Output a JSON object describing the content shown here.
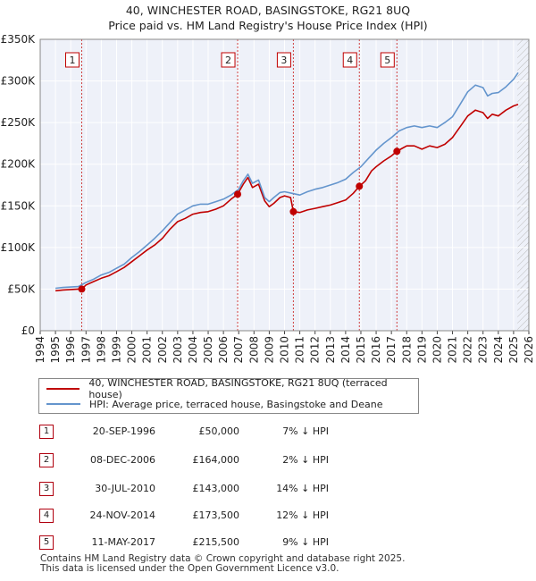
{
  "chart_data": {
    "type": "line",
    "title_line1": "40, WINCHESTER ROAD, BASINGSTOKE, RG21 8UQ",
    "title_line2": "Price paid vs. HM Land Registry's House Price Index (HPI)",
    "xlim": [
      1994,
      2026
    ],
    "ylim": [
      0,
      350000
    ],
    "ytick_values": [
      0,
      50000,
      100000,
      150000,
      200000,
      250000,
      300000,
      350000
    ],
    "ytick_labels": [
      "£0",
      "£50K",
      "£100K",
      "£150K",
      "£200K",
      "£250K",
      "£300K",
      "£350K"
    ],
    "xtick_labels": [
      "1994",
      "1995",
      "1996",
      "1997",
      "1998",
      "1999",
      "2000",
      "2001",
      "2002",
      "2003",
      "2004",
      "2005",
      "2006",
      "2007",
      "2008",
      "2009",
      "2010",
      "2011",
      "2012",
      "2013",
      "2014",
      "2015",
      "2016",
      "2017",
      "2018",
      "2019",
      "2020",
      "2021",
      "2022",
      "2023",
      "2024",
      "2025",
      "2026"
    ],
    "hatch_start": 2025.25,
    "series": [
      {
        "name": "40, WINCHESTER ROAD, BASINGSTOKE, RG21 8UQ (terraced house)",
        "color": "#c00000",
        "x": [
          1995.0,
          1995.5,
          1996.0,
          1996.5,
          1996.72,
          1997.0,
          1997.5,
          1998.0,
          1998.5,
          1999.0,
          1999.5,
          2000.0,
          2000.5,
          2001.0,
          2001.5,
          2002.0,
          2002.5,
          2003.0,
          2003.5,
          2004.0,
          2004.5,
          2005.0,
          2005.5,
          2006.0,
          2006.5,
          2006.93,
          2007.3,
          2007.6,
          2007.9,
          2008.3,
          2008.7,
          2009.0,
          2009.3,
          2009.7,
          2010.0,
          2010.4,
          2010.58,
          2011.0,
          2011.5,
          2012.0,
          2012.5,
          2013.0,
          2013.5,
          2014.0,
          2014.5,
          2014.9,
          2015.3,
          2015.7,
          2016.0,
          2016.5,
          2017.0,
          2017.36,
          2017.7,
          2018.0,
          2018.5,
          2019.0,
          2019.5,
          2020.0,
          2020.5,
          2021.0,
          2021.5,
          2022.0,
          2022.5,
          2023.0,
          2023.3,
          2023.6,
          2024.0,
          2024.5,
          2025.0,
          2025.3
        ],
        "y": [
          48000,
          49000,
          49500,
          50000,
          50000,
          55000,
          59000,
          63000,
          66000,
          71000,
          76000,
          83000,
          90000,
          97000,
          103000,
          111000,
          122000,
          131000,
          135000,
          140000,
          142000,
          143000,
          146000,
          150000,
          158000,
          164000,
          176000,
          184000,
          172000,
          176000,
          156000,
          149000,
          153000,
          160000,
          162000,
          160000,
          143000,
          142000,
          145000,
          147000,
          149000,
          151000,
          154000,
          157000,
          165000,
          173500,
          180000,
          192000,
          197000,
          204000,
          210000,
          215500,
          219000,
          222000,
          222000,
          218000,
          222000,
          220000,
          224000,
          232000,
          245000,
          258000,
          265000,
          262000,
          255000,
          260000,
          258000,
          265000,
          270000,
          272000
        ]
      },
      {
        "name": "HPI: Average price, terraced house, Basingstoke and Deane",
        "color": "#6495cd",
        "x": [
          1995.0,
          1995.5,
          1996.0,
          1996.5,
          1997.0,
          1997.5,
          1998.0,
          1998.5,
          1999.0,
          1999.5,
          2000.0,
          2000.5,
          2001.0,
          2001.5,
          2002.0,
          2002.5,
          2003.0,
          2003.5,
          2004.0,
          2004.5,
          2005.0,
          2005.5,
          2006.0,
          2006.5,
          2007.0,
          2007.3,
          2007.6,
          2007.9,
          2008.3,
          2008.7,
          2009.0,
          2009.3,
          2009.7,
          2010.0,
          2010.5,
          2011.0,
          2011.5,
          2012.0,
          2012.5,
          2013.0,
          2013.5,
          2014.0,
          2014.5,
          2015.0,
          2015.5,
          2016.0,
          2016.5,
          2017.0,
          2017.5,
          2018.0,
          2018.5,
          2019.0,
          2019.5,
          2020.0,
          2020.5,
          2021.0,
          2021.5,
          2022.0,
          2022.5,
          2023.0,
          2023.3,
          2023.6,
          2024.0,
          2024.5,
          2025.0,
          2025.3
        ],
        "y": [
          51000,
          52000,
          52500,
          53000,
          58000,
          62000,
          67000,
          70000,
          75000,
          80000,
          88000,
          95000,
          103000,
          111000,
          120000,
          130000,
          140000,
          145000,
          150000,
          152000,
          152000,
          155000,
          158000,
          163000,
          170000,
          180000,
          188000,
          177000,
          181000,
          160000,
          155000,
          160000,
          166000,
          167000,
          165000,
          163000,
          167000,
          170000,
          172000,
          175000,
          178000,
          182000,
          190000,
          197000,
          207000,
          217000,
          225000,
          232000,
          240000,
          244000,
          246000,
          244000,
          246000,
          244000,
          250000,
          257000,
          272000,
          287000,
          295000,
          292000,
          282000,
          285000,
          286000,
          293000,
          302000,
          310000
        ]
      }
    ],
    "sales": [
      {
        "label": "1",
        "x": 1996.72,
        "price": 50000
      },
      {
        "label": "2",
        "x": 2006.93,
        "price": 164000
      },
      {
        "label": "3",
        "x": 2010.58,
        "price": 143000
      },
      {
        "label": "4",
        "x": 2014.9,
        "price": 173500
      },
      {
        "label": "5",
        "x": 2017.36,
        "price": 215500
      }
    ]
  },
  "legend": {
    "red_label": "40, WINCHESTER ROAD, BASINGSTOKE, RG21 8UQ (terraced house)",
    "blue_label": "HPI: Average price, terraced house, Basingstoke and Deane",
    "red_color": "#c00000",
    "blue_color": "#6495cd"
  },
  "sales_table": [
    {
      "num": "1",
      "date": "20-SEP-1996",
      "price": "£50,000",
      "hpi": "7% ↓ HPI"
    },
    {
      "num": "2",
      "date": "08-DEC-2006",
      "price": "£164,000",
      "hpi": "2% ↓ HPI"
    },
    {
      "num": "3",
      "date": "30-JUL-2010",
      "price": "£143,000",
      "hpi": "14% ↓ HPI"
    },
    {
      "num": "4",
      "date": "24-NOV-2014",
      "price": "£173,500",
      "hpi": "12% ↓ HPI"
    },
    {
      "num": "5",
      "date": "11-MAY-2017",
      "price": "£215,500",
      "hpi": "9% ↓ HPI"
    }
  ],
  "footer": {
    "line1": "Contains HM Land Registry data © Crown copyright and database right 2025.",
    "line2": "This data is licensed under the Open Government Licence v3.0."
  }
}
